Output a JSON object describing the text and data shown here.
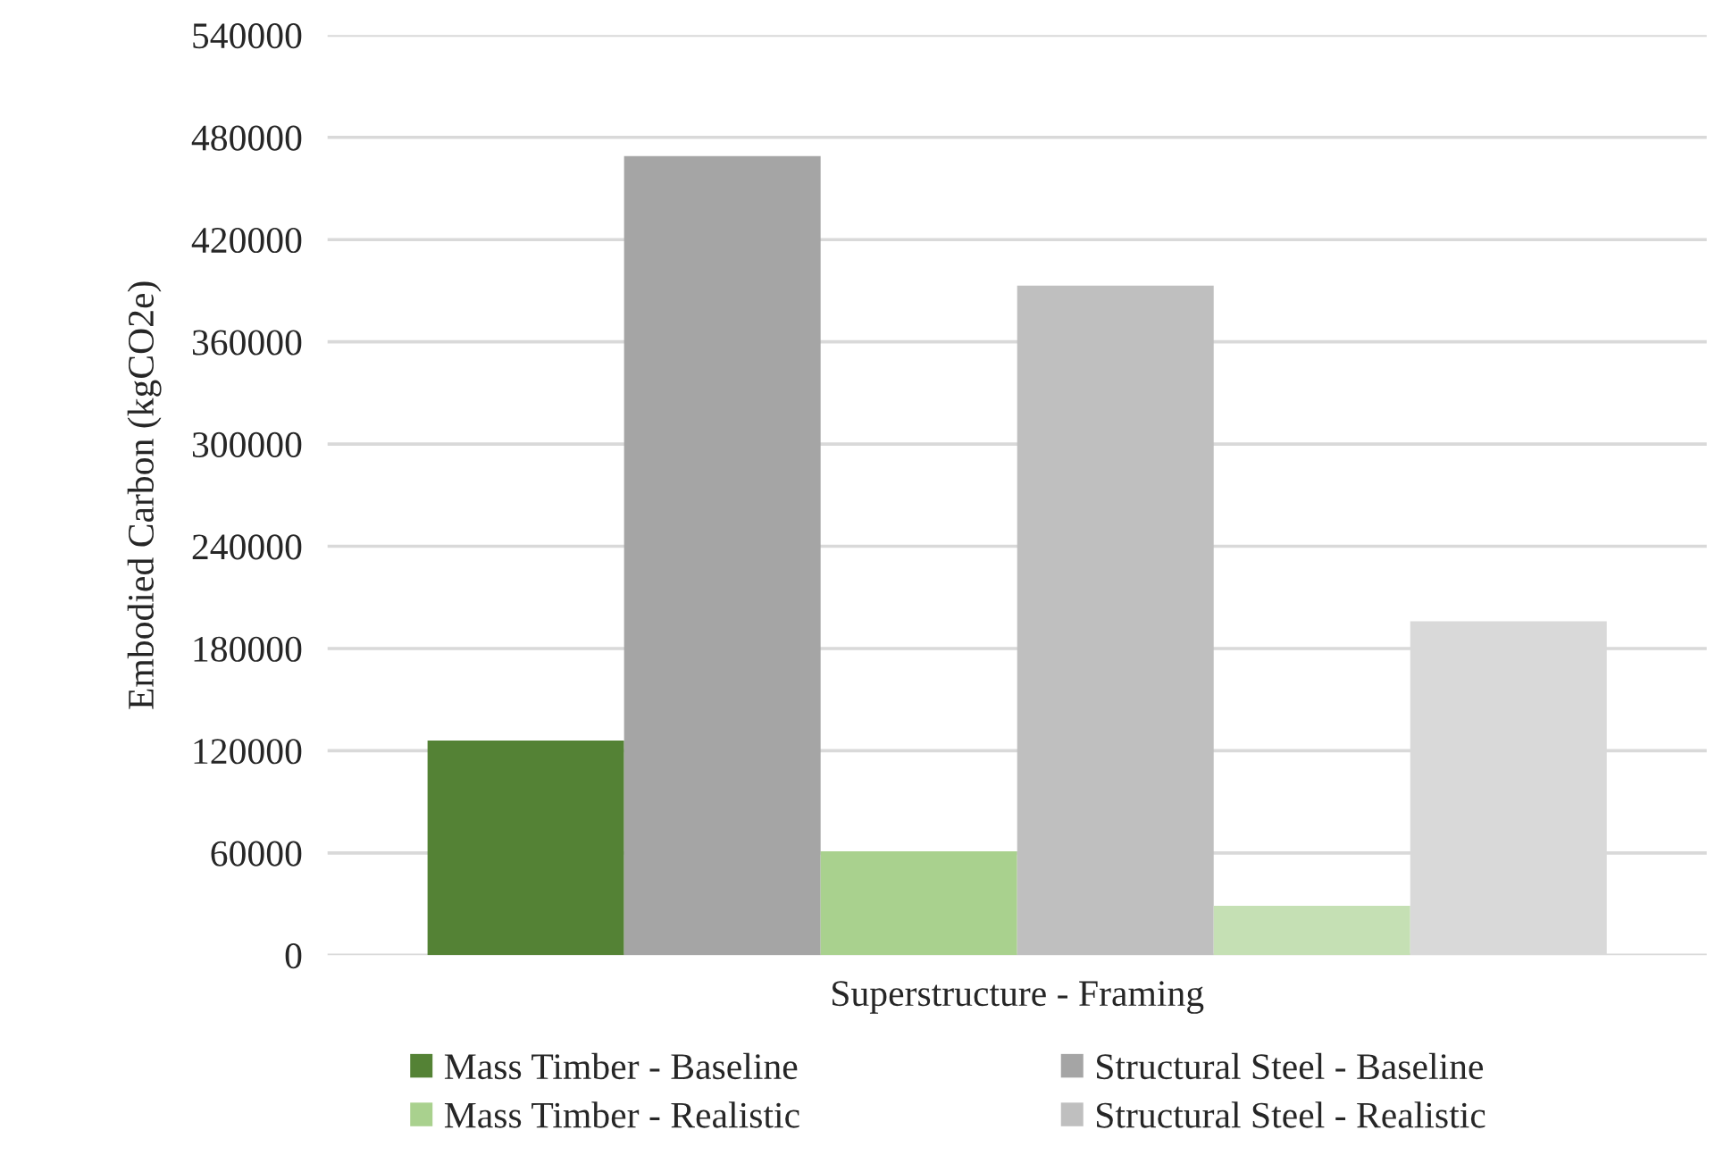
{
  "chart_data": {
    "type": "bar",
    "ylabel": "Embodied Carbon (kgCO2e)",
    "categories": [
      "Superstructure - Framing"
    ],
    "series": [
      {
        "name": "Mass Timber - Baseline",
        "color": "#548235",
        "values": [
          126000
        ]
      },
      {
        "name": "Structural Steel - Baseline",
        "color": "#a5a5a5",
        "values": [
          469000
        ]
      },
      {
        "name": "Mass Timber - Realistic",
        "color": "#a9d18e",
        "values": [
          61000
        ]
      },
      {
        "name": "Structural Steel - Realistic",
        "color": "#bfbfbf",
        "values": [
          393000
        ]
      },
      {
        "color": "#c5e0b4",
        "values": [
          29000
        ]
      },
      {
        "color": "#d9d9d9",
        "values": [
          196000
        ]
      }
    ],
    "ylim": [
      0,
      540000
    ],
    "yticks": [
      0,
      60000,
      120000,
      180000,
      240000,
      300000,
      360000,
      420000,
      480000,
      540000
    ],
    "grid": "y",
    "legend": "bottom"
  }
}
